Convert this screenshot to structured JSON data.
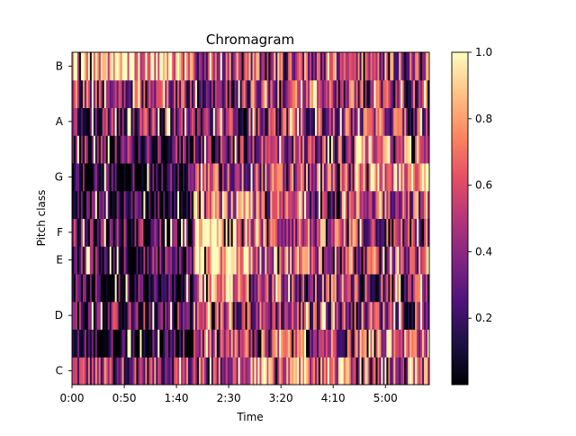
{
  "chart_data": {
    "type": "heatmap",
    "title": "Chromagram",
    "xlabel": "Time",
    "ylabel": "Pitch class",
    "x_ticks": [
      "0:00",
      "0:50",
      "1:40",
      "2:30",
      "3:20",
      "4:10",
      "5:00"
    ],
    "x_tick_seconds": [
      0,
      50,
      100,
      150,
      200,
      250,
      300
    ],
    "xlim_seconds": [
      0,
      342
    ],
    "pitch_classes": [
      "C",
      "C#",
      "D",
      "D#",
      "E",
      "F",
      "F#",
      "G",
      "G#",
      "A",
      "A#",
      "B"
    ],
    "y_tick_labels": [
      "C",
      "D",
      "E",
      "F",
      "G",
      "A",
      "B"
    ],
    "colorbar": {
      "colormap": "magma",
      "range": [
        0.0,
        1.0
      ],
      "ticks": [
        "0.2",
        "0.4",
        "0.6",
        "0.8",
        "1.0"
      ],
      "tick_values": [
        0.2,
        0.4,
        0.6,
        0.8,
        1.0
      ]
    },
    "segments": [
      {
        "start": 0,
        "end": 117,
        "levels": {
          "C": 0.45,
          "C#": 0.1,
          "D": 0.3,
          "D#": 0.1,
          "E": 0.2,
          "F": 0.25,
          "F#": 0.1,
          "G": 0.12,
          "G#": 0.25,
          "A": 0.35,
          "A#": 0.45,
          "B": 0.85
        }
      },
      {
        "start": 117,
        "end": 170,
        "levels": {
          "C": 0.5,
          "C#": 0.5,
          "D": 0.5,
          "D#": 0.7,
          "E": 0.92,
          "F": 0.9,
          "F#": 0.6,
          "G": 0.5,
          "G#": 0.3,
          "A": 0.35,
          "A#": 0.4,
          "B": 0.5
        }
      },
      {
        "start": 170,
        "end": 270,
        "levels": {
          "C": 0.65,
          "C#": 0.55,
          "D": 0.45,
          "D#": 0.5,
          "E": 0.65,
          "F": 0.55,
          "F#": 0.5,
          "G": 0.5,
          "G#": 0.45,
          "A": 0.45,
          "A#": 0.5,
          "B": 0.55
        }
      },
      {
        "start": 270,
        "end": 342,
        "levels": {
          "C": 0.6,
          "C#": 0.65,
          "D": 0.5,
          "D#": 0.4,
          "E": 0.5,
          "F": 0.45,
          "F#": 0.55,
          "G": 0.8,
          "G#": 0.75,
          "A": 0.5,
          "A#": 0.45,
          "B": 0.55
        }
      }
    ]
  }
}
